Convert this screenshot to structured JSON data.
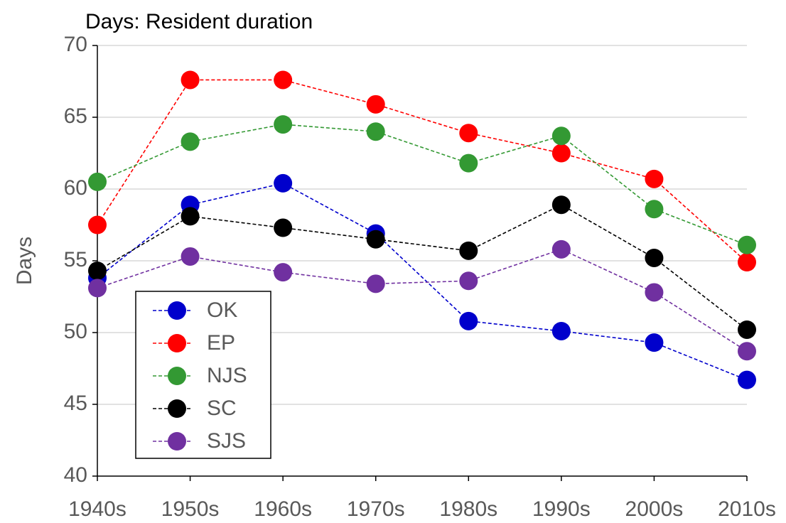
{
  "chart_data": {
    "type": "line",
    "title": "Days: Resident duration",
    "y_label": "Days",
    "categories": [
      "1940s",
      "1950s",
      "1960s",
      "1970s",
      "1980s",
      "1990s",
      "2000s",
      "2010s"
    ],
    "series": [
      {
        "name": "OK",
        "color": "#0000cc",
        "values": [
          53.8,
          58.9,
          60.4,
          56.9,
          50.8,
          50.1,
          49.3,
          46.7
        ]
      },
      {
        "name": "EP",
        "color": "#ff0000",
        "values": [
          57.5,
          67.6,
          67.6,
          65.9,
          63.9,
          62.5,
          60.7,
          54.9
        ]
      },
      {
        "name": "NJS",
        "color": "#339933",
        "values": [
          60.5,
          63.3,
          64.5,
          64.0,
          61.8,
          63.7,
          58.6,
          56.1
        ]
      },
      {
        "name": "SC",
        "color": "#000000",
        "values": [
          54.3,
          58.1,
          57.3,
          56.5,
          55.7,
          58.9,
          55.2,
          50.2
        ]
      },
      {
        "name": "SJS",
        "color": "#7030a0",
        "values": [
          53.1,
          55.3,
          54.2,
          53.4,
          53.6,
          55.8,
          52.8,
          48.7
        ]
      }
    ],
    "ylim": [
      40,
      70
    ],
    "yticks": [
      40,
      45,
      50,
      55,
      60,
      65,
      70
    ],
    "grid": true,
    "legend": "lower left"
  }
}
